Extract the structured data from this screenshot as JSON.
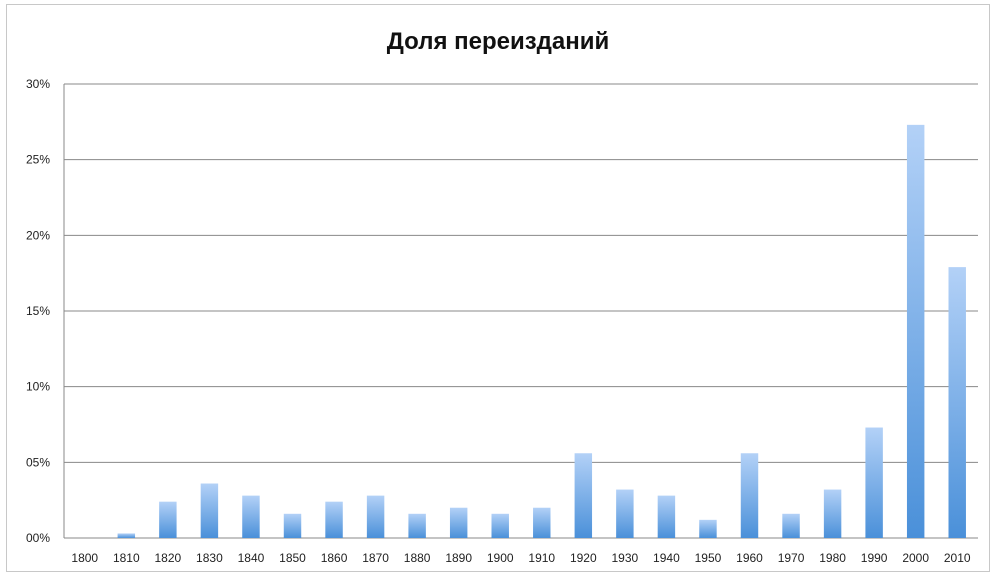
{
  "chart_data": {
    "type": "bar",
    "title": "Доля переизданий",
    "xlabel": "",
    "ylabel": "",
    "ylim": [
      0,
      30
    ],
    "yticks": [
      0,
      5,
      10,
      15,
      20,
      25,
      30
    ],
    "ytick_labels": [
      "00%",
      "05%",
      "10%",
      "15%",
      "20%",
      "25%",
      "30%"
    ],
    "grid": true,
    "legend": "none",
    "categories": [
      "1800",
      "1810",
      "1820",
      "1830",
      "1840",
      "1850",
      "1860",
      "1870",
      "1880",
      "1890",
      "1900",
      "1910",
      "1920",
      "1930",
      "1940",
      "1950",
      "1960",
      "1970",
      "1980",
      "1990",
      "2000",
      "2010"
    ],
    "values": [
      0,
      0.3,
      2.4,
      3.6,
      2.8,
      1.6,
      2.4,
      2.8,
      1.6,
      2.0,
      1.6,
      2.0,
      5.6,
      3.2,
      2.8,
      1.2,
      5.6,
      1.6,
      3.2,
      7.3,
      27.3,
      17.9
    ],
    "colors": {
      "bar_top": "#b3d1f7",
      "bar_bottom": "#4a90d9",
      "grid": "#888888",
      "axis": "#888888"
    }
  }
}
